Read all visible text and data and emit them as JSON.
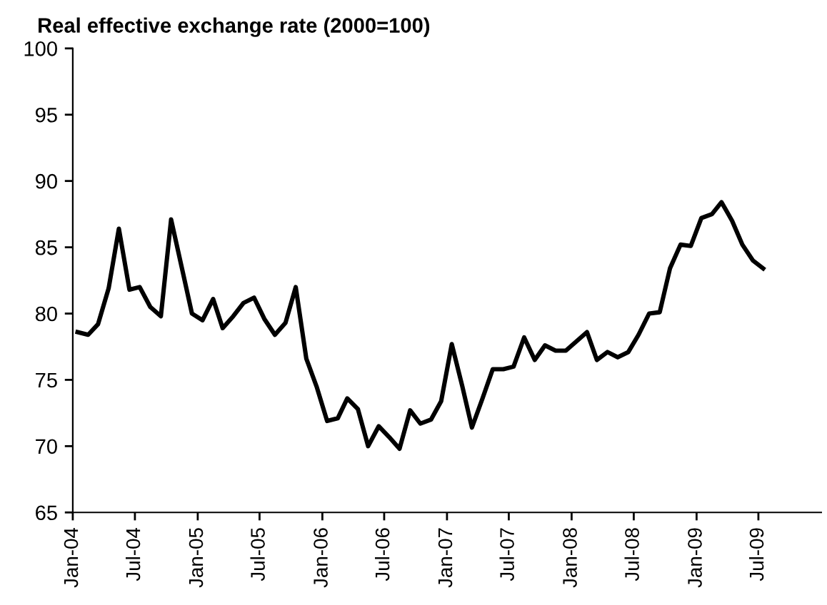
{
  "chart_data": {
    "type": "line",
    "title": "Real effective exchange rate (2000=100)",
    "x": [
      "2004-01-15",
      "2004-02-15",
      "2004-03-15",
      "2004-04-15",
      "2004-05-15",
      "2004-06-15",
      "2004-07-15",
      "2004-08-15",
      "2004-09-15",
      "2004-10-15",
      "2004-11-15",
      "2004-12-15",
      "2005-01-15",
      "2005-02-15",
      "2005-03-15",
      "2005-04-15",
      "2005-05-15",
      "2005-06-15",
      "2005-07-15",
      "2005-08-15",
      "2005-09-15",
      "2005-10-15",
      "2005-11-15",
      "2005-12-15",
      "2006-01-15",
      "2006-02-15",
      "2006-03-15",
      "2006-04-15",
      "2006-05-15",
      "2006-06-15",
      "2006-07-15",
      "2006-08-15",
      "2006-09-15",
      "2006-10-15",
      "2006-11-15",
      "2006-12-15",
      "2007-01-15",
      "2007-02-15",
      "2007-03-15",
      "2007-04-15",
      "2007-05-15",
      "2007-06-15",
      "2007-07-15",
      "2007-08-15",
      "2007-09-15",
      "2007-10-15",
      "2007-11-15",
      "2007-12-15",
      "2008-01-15",
      "2008-02-15",
      "2008-03-15",
      "2008-04-15",
      "2008-05-15",
      "2008-06-15",
      "2008-07-15",
      "2008-08-15",
      "2008-09-15",
      "2008-10-15",
      "2008-11-15",
      "2008-12-15",
      "2009-01-15",
      "2009-02-15",
      "2009-03-15",
      "2009-04-15",
      "2009-05-15",
      "2009-06-15",
      "2009-07-15"
    ],
    "series": [
      {
        "color": "#000000",
        "values": [
          78.6,
          78.4,
          79.2,
          81.9,
          86.4,
          81.8,
          82.0,
          80.5,
          79.8,
          87.1,
          83.5,
          80.0,
          79.5,
          81.1,
          78.9,
          79.8,
          80.8,
          81.2,
          79.6,
          78.4,
          79.3,
          82.0,
          76.6,
          74.5,
          71.9,
          72.1,
          73.6,
          72.8,
          70.0,
          71.5,
          70.7,
          69.8,
          72.7,
          71.7,
          72.0,
          73.4,
          77.7,
          74.5,
          71.4,
          73.6,
          75.8,
          75.8,
          76.0,
          78.2,
          76.5,
          77.6,
          77.2,
          77.2,
          77.9,
          78.6,
          76.5,
          77.1,
          76.7,
          77.1,
          78.4,
          80.0,
          80.1,
          83.4,
          85.2,
          85.1,
          87.2,
          87.5,
          88.4,
          87.0,
          85.2,
          84.0,
          83.4
        ]
      }
    ],
    "xlim": [
      "2004-01-01",
      "2010-01-01"
    ],
    "xticks": [
      {
        "value": "2004-01-01",
        "label": "Jan-04"
      },
      {
        "value": "2004-07-01",
        "label": "Jul-04"
      },
      {
        "value": "2005-01-01",
        "label": "Jan-05"
      },
      {
        "value": "2005-07-01",
        "label": "Jul-05"
      },
      {
        "value": "2006-01-01",
        "label": "Jan-06"
      },
      {
        "value": "2006-07-01",
        "label": "Jul-06"
      },
      {
        "value": "2007-01-01",
        "label": "Jan-07"
      },
      {
        "value": "2007-07-01",
        "label": "Jul-07"
      },
      {
        "value": "2008-01-01",
        "label": "Jan-08"
      },
      {
        "value": "2008-07-01",
        "label": "Jul-08"
      },
      {
        "value": "2009-01-01",
        "label": "Jan-09"
      },
      {
        "value": "2009-07-01",
        "label": "Jul-09"
      }
    ],
    "ylim": [
      65,
      100
    ],
    "yticks": [
      65,
      70,
      75,
      80,
      85,
      90,
      95,
      100
    ],
    "grid": false,
    "legend": false,
    "marker": "none",
    "line_style": "solid"
  }
}
